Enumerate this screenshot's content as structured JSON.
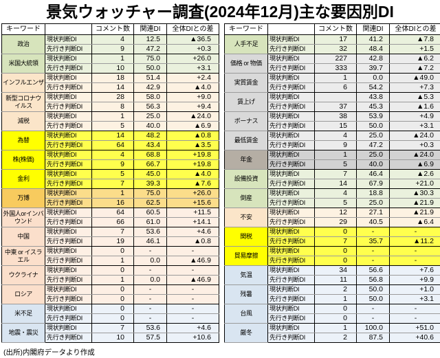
{
  "title": "景気ウォッチャー調査(2024年12月)主な要因別DI",
  "source_note": "(出所)内閣府データより作成",
  "header": {
    "keyword": "キーワード",
    "indicator": "",
    "comments": "コメント数",
    "di": "関連DI",
    "diff": "全体DIとの差"
  },
  "row_labels": [
    "現状判断DI",
    "先行き判断DI"
  ],
  "palette": {
    "green": {
      "kw": "#d7e4bc",
      "row": "#eaf1dd"
    },
    "cream": {
      "kw": "#fbe5c9",
      "row": "#fdf2e2"
    },
    "yellow": {
      "kw": "#ffff00",
      "row": "#ffff4d"
    },
    "gold": {
      "kw": "#f8cb5e",
      "row": "#fbdd8a"
    },
    "pink": {
      "kw": "#fbdfcb",
      "row": "#fdefe4"
    },
    "blue": {
      "kw": "#d9e5f1",
      "row": "#ecf2f9"
    },
    "gray": {
      "kw": "#d9d9d9",
      "row": "#ececec"
    },
    "darkgray": {
      "kw": "#b5aea4",
      "row": "#d2d2d2"
    }
  },
  "chart_data": {
    "type": "table",
    "title": "景気ウォッチャー調査(2024年12月)主な要因別DI",
    "columns": [
      "キーワード",
      "判断区分",
      "コメント数",
      "関連DI",
      "全体DIとの差"
    ],
    "tables": [
      {
        "groups": [
          {
            "keyword": "政治",
            "color": "green",
            "rows": [
              [
                "4",
                "12.5",
                "▲36.5"
              ],
              [
                "9",
                "47.2",
                "+0.3"
              ]
            ]
          },
          {
            "keyword": "米国大統領",
            "color": "green",
            "rows": [
              [
                "1",
                "75.0",
                "+26.0"
              ],
              [
                "10",
                "50.0",
                "+3.1"
              ]
            ]
          },
          {
            "keyword": "インフルエンザ",
            "color": "cream",
            "rows": [
              [
                "18",
                "51.4",
                "+2.4"
              ],
              [
                "14",
                "42.9",
                "▲4.0"
              ]
            ]
          },
          {
            "keyword": "新型コロナウイルス",
            "color": "cream",
            "rows": [
              [
                "28",
                "58.0",
                "+9.0"
              ],
              [
                "8",
                "56.3",
                "+9.4"
              ]
            ]
          },
          {
            "keyword": "減税",
            "color": "cream",
            "rows": [
              [
                "1",
                "25.0",
                "▲24.0"
              ],
              [
                "5",
                "40.0",
                "▲6.9"
              ]
            ]
          },
          {
            "keyword": "為替",
            "color": "yellow",
            "rows": [
              [
                "14",
                "48.2",
                "▲0.8"
              ],
              [
                "64",
                "43.4",
                "▲3.5"
              ]
            ]
          },
          {
            "keyword": "株(株価)",
            "color": "yellow",
            "rows": [
              [
                "4",
                "68.8",
                "+19.8"
              ],
              [
                "9",
                "66.7",
                "+19.8"
              ]
            ]
          },
          {
            "keyword": "金利",
            "color": "yellow",
            "rows": [
              [
                "5",
                "45.0",
                "▲4.0"
              ],
              [
                "7",
                "39.3",
                "▲7.6"
              ]
            ]
          },
          {
            "keyword": "万博",
            "color": "gold",
            "rows": [
              [
                "1",
                "75.0",
                "+26.0"
              ],
              [
                "16",
                "62.5",
                "+15.6"
              ]
            ]
          },
          {
            "keyword": "外国人orインバウンド",
            "color": "pink",
            "rows": [
              [
                "64",
                "60.5",
                "+11.5"
              ],
              [
                "66",
                "61.0",
                "+14.1"
              ]
            ]
          },
          {
            "keyword": "中国",
            "color": "pink",
            "rows": [
              [
                "7",
                "53.6",
                "+4.6"
              ],
              [
                "19",
                "46.1",
                "▲0.8"
              ]
            ]
          },
          {
            "keyword": "中東 or イスラエル",
            "color": "pink",
            "rows": [
              [
                "0",
                "-",
                "-"
              ],
              [
                "1",
                "0.0",
                "▲46.9"
              ]
            ]
          },
          {
            "keyword": "ウクライナ",
            "color": "pink",
            "rows": [
              [
                "0",
                "-",
                "-"
              ],
              [
                "1",
                "0.0",
                "▲46.9"
              ]
            ]
          },
          {
            "keyword": "ロシア",
            "color": "pink",
            "rows": [
              [
                "0",
                "-",
                "-"
              ],
              [
                "0",
                "-",
                "-"
              ]
            ]
          },
          {
            "keyword": "米不足",
            "color": "blue",
            "rows": [
              [
                "0",
                "-",
                "-"
              ],
              [
                "0",
                "-",
                "-"
              ]
            ]
          },
          {
            "keyword": "地震・震災",
            "color": "blue",
            "rows": [
              [
                "7",
                "53.6",
                "+4.6"
              ],
              [
                "10",
                "57.5",
                "+10.6"
              ]
            ]
          }
        ]
      },
      {
        "groups": [
          {
            "keyword": "人手不足",
            "color": "green",
            "rows": [
              [
                "17",
                "41.2",
                "▲7.8"
              ],
              [
                "32",
                "48.4",
                "+1.5"
              ]
            ]
          },
          {
            "keyword": "価格 or 物価",
            "color": "gray",
            "rows": [
              [
                "227",
                "42.8",
                "▲6.2"
              ],
              [
                "333",
                "39.7",
                "▲7.2"
              ]
            ]
          },
          {
            "keyword": "実質賃金",
            "color": "gray",
            "rows": [
              [
                "1",
                "0.0",
                "▲49.0"
              ],
              [
                "6",
                "54.2",
                "+7.3"
              ]
            ]
          },
          {
            "keyword": "賃上げ",
            "color": "gray",
            "rows": [
              [
                "",
                "43.8",
                "▲5.3"
              ],
              [
                "37",
                "45.3",
                "▲1.6"
              ]
            ]
          },
          {
            "keyword": "ボーナス",
            "color": "gray",
            "rows": [
              [
                "38",
                "53.9",
                "+4.9"
              ],
              [
                "15",
                "50.0",
                "+3.1"
              ]
            ]
          },
          {
            "keyword": "最低賃金",
            "color": "gray",
            "rows": [
              [
                "4",
                "25.0",
                "▲24.0"
              ],
              [
                "9",
                "47.2",
                "+0.3"
              ]
            ]
          },
          {
            "keyword": "年金",
            "color": "darkgray",
            "rows": [
              [
                "1",
                "25.0",
                "▲24.0"
              ],
              [
                "5",
                "40.0",
                "▲6.9"
              ]
            ]
          },
          {
            "keyword": "設備投資",
            "color": "green",
            "rows": [
              [
                "7",
                "46.4",
                "▲2.6"
              ],
              [
                "14",
                "67.9",
                "+21.0"
              ]
            ]
          },
          {
            "keyword": "倒産",
            "color": "green",
            "rows": [
              [
                "4",
                "18.8",
                "▲30.3"
              ],
              [
                "5",
                "25.0",
                "▲21.9"
              ]
            ]
          },
          {
            "keyword": "不安",
            "color": "cream",
            "rows": [
              [
                "12",
                "27.1",
                "▲21.9"
              ],
              [
                "29",
                "40.5",
                "▲6.4"
              ]
            ]
          },
          {
            "keyword": "関税",
            "color": "yellow",
            "rows": [
              [
                "0",
                "-",
                "-"
              ],
              [
                "7",
                "35.7",
                "▲11.2"
              ]
            ]
          },
          {
            "keyword": "貿易摩擦",
            "color": "yellow",
            "rows": [
              [
                "0",
                "-",
                "-"
              ],
              [
                "0",
                "-",
                "-"
              ]
            ]
          },
          {
            "keyword": "気温",
            "color": "blue",
            "rows": [
              [
                "34",
                "56.6",
                "+7.6"
              ],
              [
                "11",
                "56.8",
                "+9.9"
              ]
            ]
          },
          {
            "keyword": "残暑",
            "color": "blue",
            "rows": [
              [
                "2",
                "50.0",
                "+1.0"
              ],
              [
                "1",
                "50.0",
                "+3.1"
              ]
            ]
          },
          {
            "keyword": "台風",
            "color": "blue",
            "rows": [
              [
                "0",
                "-",
                "-"
              ],
              [
                "0",
                "-",
                "-"
              ]
            ]
          },
          {
            "keyword": "厳冬",
            "color": "blue",
            "rows": [
              [
                "1",
                "100.0",
                "+51.0"
              ],
              [
                "2",
                "87.5",
                "+40.6"
              ]
            ]
          }
        ]
      }
    ]
  }
}
